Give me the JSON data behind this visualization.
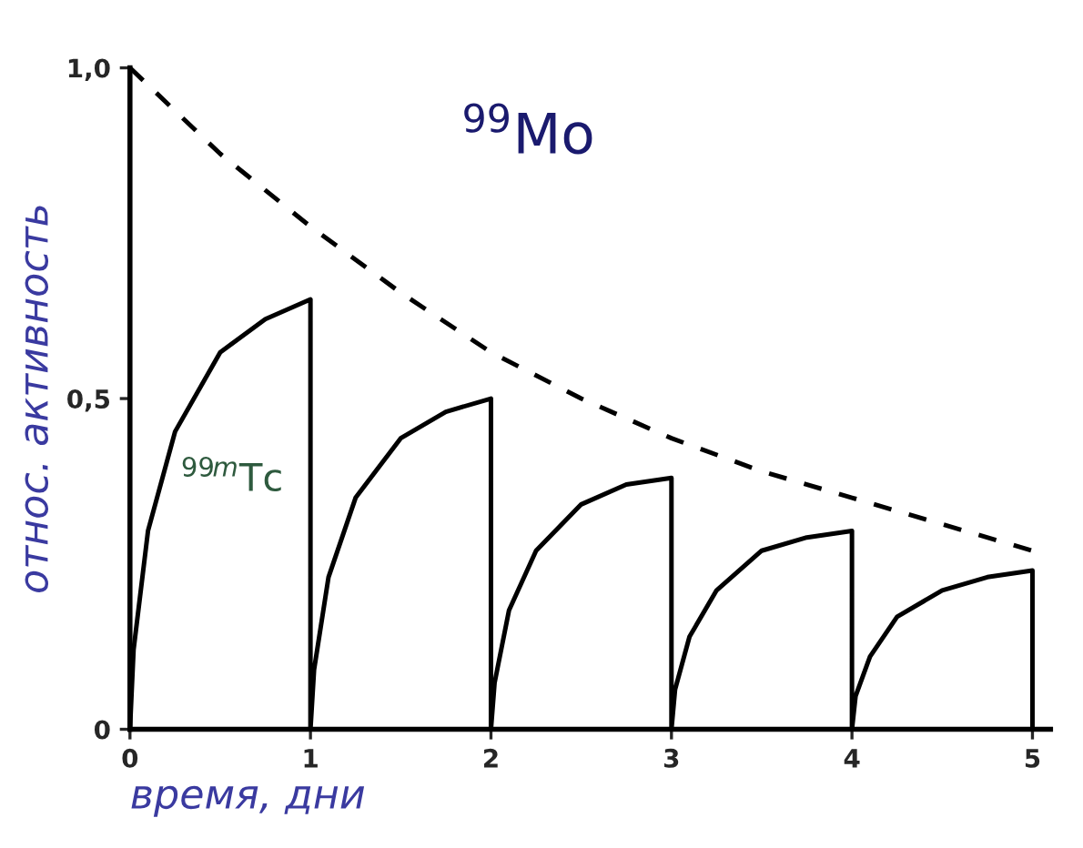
{
  "chart_data": {
    "type": "line",
    "xlabel": "время, дни",
    "ylabel": "относ. активность",
    "xlim": [
      0,
      5.1
    ],
    "ylim": [
      0,
      1.0
    ],
    "xticks": [
      0,
      1,
      2,
      3,
      4,
      5
    ],
    "yticks": [
      0,
      {
        "value": 0.5,
        "label": "0,5"
      },
      {
        "value": 1.0,
        "label": "1,0"
      }
    ],
    "grid": false,
    "legend": false,
    "marker": "none",
    "series": [
      {
        "name": "$^{99}$Mo",
        "color": "#000000",
        "line_style": "dashed",
        "x": [
          0,
          0.5,
          1,
          1.5,
          2,
          2.5,
          3,
          3.5,
          4,
          4.5,
          5
        ],
        "values": [
          1.0,
          0.87,
          0.76,
          0.66,
          0.57,
          0.5,
          0.44,
          0.39,
          0.35,
          0.31,
          0.27
        ]
      },
      {
        "name": "$^{99m}$Tc",
        "color": "#000000",
        "line_style": "solid",
        "x": [
          0,
          0.02,
          0.1,
          0.25,
          0.5,
          0.75,
          1,
          1,
          1.02,
          1.1,
          1.25,
          1.5,
          1.75,
          2,
          2,
          2.02,
          2.1,
          2.25,
          2.5,
          2.75,
          3,
          3,
          3.02,
          3.1,
          3.25,
          3.5,
          3.75,
          4,
          4,
          4.02,
          4.1,
          4.25,
          4.5,
          4.75,
          5,
          5
        ],
        "values": [
          0,
          0.12,
          0.3,
          0.45,
          0.57,
          0.62,
          0.65,
          0,
          0.09,
          0.23,
          0.35,
          0.44,
          0.48,
          0.5,
          0,
          0.07,
          0.18,
          0.27,
          0.34,
          0.37,
          0.38,
          0,
          0.06,
          0.14,
          0.21,
          0.27,
          0.29,
          0.3,
          0,
          0.05,
          0.11,
          0.17,
          0.21,
          0.23,
          0.24,
          0
        ]
      }
    ]
  }
}
